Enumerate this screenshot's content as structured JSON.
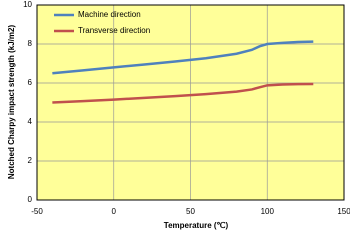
{
  "chart_data": {
    "type": "line",
    "x_label": "Temperature (℃)",
    "y_label": "Notched Charpy impact strength (kJ/m2)",
    "x": [
      -40,
      -20,
      0,
      20,
      40,
      60,
      80,
      90,
      95,
      100,
      110,
      120,
      130
    ],
    "series": [
      {
        "name": "Machine direction",
        "color": "#4f81bd",
        "values": [
          6.5,
          6.65,
          6.8,
          6.95,
          7.1,
          7.27,
          7.5,
          7.7,
          7.88,
          8.0,
          8.06,
          8.1,
          8.12
        ]
      },
      {
        "name": "Transverse direction",
        "color": "#c0504d",
        "values": [
          5.0,
          5.07,
          5.15,
          5.24,
          5.33,
          5.43,
          5.56,
          5.67,
          5.78,
          5.88,
          5.92,
          5.94,
          5.95
        ]
      }
    ],
    "xlim": [
      -50,
      150
    ],
    "xticks": [
      -50,
      0,
      50,
      100,
      150
    ],
    "ylim": [
      0,
      10
    ],
    "yticks": [
      0,
      2,
      4,
      6,
      8,
      10
    ],
    "grid": true,
    "background": "#ffff99",
    "legend": "top-left"
  }
}
